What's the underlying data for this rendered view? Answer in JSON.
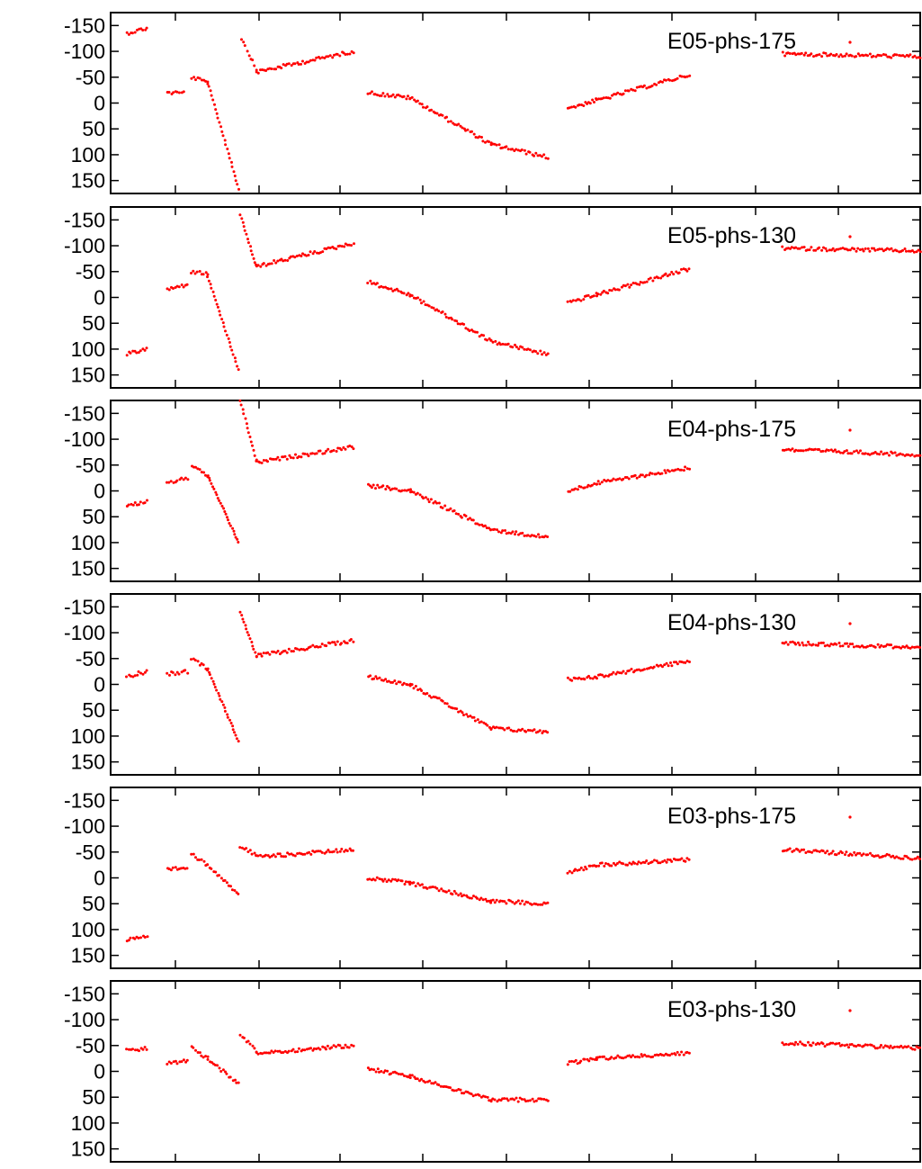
{
  "chart_data": [
    {
      "type": "scatter",
      "legend": "E05-phs-175",
      "ylim": [
        -175,
        175
      ],
      "yticks": [
        "-150",
        "-100",
        "-50",
        "0",
        "50",
        "100",
        "150"
      ],
      "y_reversed": true,
      "xlim": [
        0,
        1000
      ],
      "xticks": [],
      "legend_position": "top-right",
      "series": [
        {
          "color": "#ff0000",
          "segments": [
            {
              "x": [
                20,
                45
              ],
              "y": [
                -135,
                -145
              ]
            },
            {
              "x": [
                70,
                90
              ],
              "y": [
                -20,
                -20
              ]
            },
            {
              "x": [
                100,
                120
              ],
              "y": [
                -50,
                -40
              ]
            },
            {
              "x": [
                120,
                160
              ],
              "y": [
                -40,
                175
              ]
            },
            {
              "x": [
                162,
                180
              ],
              "y": [
                -125,
                -65
              ]
            },
            {
              "x": [
                180,
                300
              ],
              "y": [
                -60,
                -100
              ]
            },
            {
              "x": [
                318,
                370
              ],
              "y": [
                -20,
                -10
              ]
            },
            {
              "x": [
                370,
                470
              ],
              "y": [
                -10,
                80
              ]
            },
            {
              "x": [
                470,
                540
              ],
              "y": [
                80,
                105
              ]
            },
            {
              "x": [
                565,
                600
              ],
              "y": [
                10,
                -5
              ]
            },
            {
              "x": [
                600,
                715
              ],
              "y": [
                -5,
                -55
              ]
            },
            {
              "x": [
                830,
                1000
              ],
              "y": [
                -95,
                -90
              ]
            }
          ]
        }
      ]
    },
    {
      "type": "scatter",
      "legend": "E05-phs-130",
      "ylim": [
        -175,
        175
      ],
      "yticks": [
        "-150",
        "-100",
        "-50",
        "0",
        "50",
        "100",
        "150"
      ],
      "y_reversed": true,
      "xlim": [
        0,
        1000
      ],
      "xticks": [],
      "legend_position": "top-right",
      "series": [
        {
          "color": "#ff0000",
          "segments": [
            {
              "x": [
                20,
                45
              ],
              "y": [
                110,
                100
              ]
            },
            {
              "x": [
                70,
                95
              ],
              "y": [
                -15,
                -25
              ]
            },
            {
              "x": [
                100,
                120
              ],
              "y": [
                -50,
                -45
              ]
            },
            {
              "x": [
                120,
                158
              ],
              "y": [
                -40,
                140
              ]
            },
            {
              "x": [
                160,
                180
              ],
              "y": [
                -160,
                -60
              ]
            },
            {
              "x": [
                180,
                300
              ],
              "y": [
                -60,
                -105
              ]
            },
            {
              "x": [
                318,
                370
              ],
              "y": [
                -30,
                -5
              ]
            },
            {
              "x": [
                370,
                470
              ],
              "y": [
                -5,
                85
              ]
            },
            {
              "x": [
                470,
                540
              ],
              "y": [
                85,
                110
              ]
            },
            {
              "x": [
                565,
                600
              ],
              "y": [
                10,
                -5
              ]
            },
            {
              "x": [
                600,
                715
              ],
              "y": [
                -5,
                -55
              ]
            },
            {
              "x": [
                830,
                1000
              ],
              "y": [
                -95,
                -90
              ]
            }
          ]
        }
      ]
    },
    {
      "type": "scatter",
      "legend": "E04-phs-175",
      "ylim": [
        -175,
        175
      ],
      "yticks": [
        "-150",
        "-100",
        "-50",
        "0",
        "50",
        "100",
        "150"
      ],
      "y_reversed": true,
      "xlim": [
        0,
        1000
      ],
      "xticks": [],
      "legend_position": "top-right",
      "series": [
        {
          "color": "#ff0000",
          "segments": [
            {
              "x": [
                20,
                45
              ],
              "y": [
                30,
                20
              ]
            },
            {
              "x": [
                70,
                95
              ],
              "y": [
                -15,
                -25
              ]
            },
            {
              "x": [
                100,
                120
              ],
              "y": [
                -50,
                -30
              ]
            },
            {
              "x": [
                120,
                158
              ],
              "y": [
                -30,
                100
              ]
            },
            {
              "x": [
                160,
                180
              ],
              "y": [
                -175,
                -60
              ]
            },
            {
              "x": [
                180,
                300
              ],
              "y": [
                -55,
                -85
              ]
            },
            {
              "x": [
                318,
                370
              ],
              "y": [
                -10,
                0
              ]
            },
            {
              "x": [
                370,
                470
              ],
              "y": [
                0,
                75
              ]
            },
            {
              "x": [
                470,
                540
              ],
              "y": [
                75,
                90
              ]
            },
            {
              "x": [
                565,
                600
              ],
              "y": [
                0,
                -15
              ]
            },
            {
              "x": [
                600,
                715
              ],
              "y": [
                -15,
                -45
              ]
            },
            {
              "x": [
                830,
                1000
              ],
              "y": [
                -80,
                -70
              ]
            }
          ]
        }
      ]
    },
    {
      "type": "scatter",
      "legend": "E04-phs-130",
      "ylim": [
        -175,
        175
      ],
      "yticks": [
        "-150",
        "-100",
        "-50",
        "0",
        "50",
        "100",
        "150"
      ],
      "y_reversed": true,
      "xlim": [
        0,
        1000
      ],
      "xticks": [],
      "legend_position": "top-right",
      "series": [
        {
          "color": "#ff0000",
          "segments": [
            {
              "x": [
                20,
                45
              ],
              "y": [
                -15,
                -25
              ]
            },
            {
              "x": [
                70,
                95
              ],
              "y": [
                -20,
                -25
              ]
            },
            {
              "x": [
                100,
                120
              ],
              "y": [
                -50,
                -30
              ]
            },
            {
              "x": [
                120,
                158
              ],
              "y": [
                -30,
                110
              ]
            },
            {
              "x": [
                160,
                180
              ],
              "y": [
                -140,
                -55
              ]
            },
            {
              "x": [
                180,
                300
              ],
              "y": [
                -55,
                -85
              ]
            },
            {
              "x": [
                318,
                370
              ],
              "y": [
                -15,
                0
              ]
            },
            {
              "x": [
                370,
                470
              ],
              "y": [
                0,
                85
              ]
            },
            {
              "x": [
                470,
                540
              ],
              "y": [
                85,
                92
              ]
            },
            {
              "x": [
                565,
                600
              ],
              "y": [
                -10,
                -15
              ]
            },
            {
              "x": [
                600,
                715
              ],
              "y": [
                -15,
                -45
              ]
            },
            {
              "x": [
                830,
                1000
              ],
              "y": [
                -80,
                -72
              ]
            }
          ]
        }
      ]
    },
    {
      "type": "scatter",
      "legend": "E03-phs-175",
      "ylim": [
        -175,
        175
      ],
      "yticks": [
        "-150",
        "-100",
        "-50",
        "0",
        "50",
        "100",
        "150"
      ],
      "y_reversed": true,
      "xlim": [
        0,
        1000
      ],
      "xticks": [],
      "legend_position": "top-right",
      "series": [
        {
          "color": "#ff0000",
          "segments": [
            {
              "x": [
                20,
                45
              ],
              "y": [
                120,
                115
              ]
            },
            {
              "x": [
                70,
                95
              ],
              "y": [
                -15,
                -20
              ]
            },
            {
              "x": [
                100,
                120
              ],
              "y": [
                -45,
                -25
              ]
            },
            {
              "x": [
                120,
                158
              ],
              "y": [
                -25,
                30
              ]
            },
            {
              "x": [
                160,
                180
              ],
              "y": [
                -60,
                -45
              ]
            },
            {
              "x": [
                180,
                300
              ],
              "y": [
                -40,
                -55
              ]
            },
            {
              "x": [
                318,
                370
              ],
              "y": [
                0,
                10
              ]
            },
            {
              "x": [
                370,
                470
              ],
              "y": [
                10,
                45
              ]
            },
            {
              "x": [
                470,
                540
              ],
              "y": [
                45,
                50
              ]
            },
            {
              "x": [
                565,
                600
              ],
              "y": [
                -10,
                -25
              ]
            },
            {
              "x": [
                600,
                715
              ],
              "y": [
                -25,
                -35
              ]
            },
            {
              "x": [
                830,
                1000
              ],
              "y": [
                -55,
                -38
              ]
            }
          ]
        }
      ]
    },
    {
      "type": "scatter",
      "legend": "E03-phs-130",
      "ylim": [
        -175,
        175
      ],
      "yticks": [
        "-150",
        "-100",
        "-50",
        "0",
        "50",
        "100",
        "150"
      ],
      "y_reversed": true,
      "xlim": [
        0,
        1000
      ],
      "xticks": [],
      "legend_position": "top-right",
      "series": [
        {
          "color": "#ff0000",
          "segments": [
            {
              "x": [
                20,
                45
              ],
              "y": [
                -40,
                -45
              ]
            },
            {
              "x": [
                70,
                95
              ],
              "y": [
                -15,
                -20
              ]
            },
            {
              "x": [
                100,
                120
              ],
              "y": [
                -45,
                -25
              ]
            },
            {
              "x": [
                120,
                158
              ],
              "y": [
                -25,
                25
              ]
            },
            {
              "x": [
                160,
                180
              ],
              "y": [
                -70,
                -40
              ]
            },
            {
              "x": [
                180,
                300
              ],
              "y": [
                -35,
                -50
              ]
            },
            {
              "x": [
                318,
                370
              ],
              "y": [
                -5,
                10
              ]
            },
            {
              "x": [
                370,
                470
              ],
              "y": [
                10,
                55
              ]
            },
            {
              "x": [
                470,
                540
              ],
              "y": [
                55,
                55
              ]
            },
            {
              "x": [
                565,
                600
              ],
              "y": [
                -15,
                -25
              ]
            },
            {
              "x": [
                600,
                715
              ],
              "y": [
                -25,
                -35
              ]
            },
            {
              "x": [
                830,
                1000
              ],
              "y": [
                -55,
                -45
              ]
            }
          ]
        }
      ]
    }
  ]
}
